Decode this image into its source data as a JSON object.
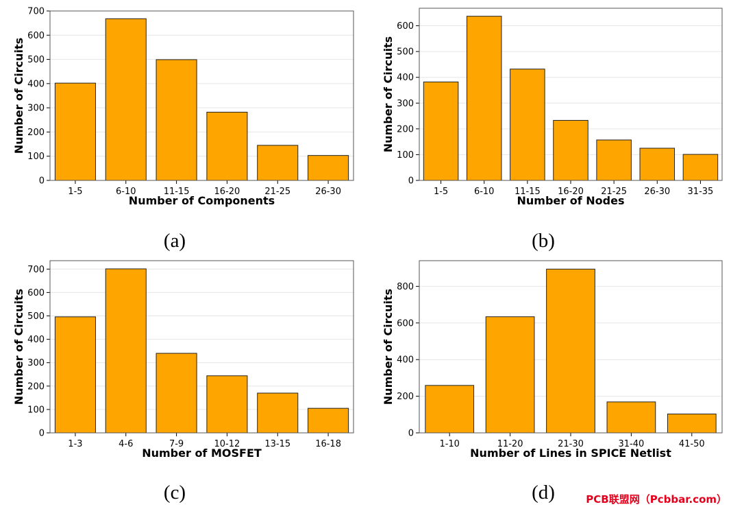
{
  "figure": {
    "bar_color": "#FFA500",
    "edge_color": "#222222",
    "watermark": "PCB联盟网（Pcbbar.com）"
  },
  "chart_data": [
    {
      "type": "bar",
      "caption": "(a)",
      "categories": [
        "1-5",
        "6-10",
        "11-15",
        "16-20",
        "21-25",
        "26-30"
      ],
      "values": [
        402,
        668,
        499,
        282,
        145,
        103
      ],
      "xlabel": "Number of Components",
      "ylabel": "Number of Circuits",
      "ylim": [
        0,
        700
      ],
      "yticks": [
        0,
        100,
        200,
        300,
        400,
        500,
        600,
        700
      ],
      "grid": "horizontal"
    },
    {
      "type": "bar",
      "caption": "(b)",
      "categories": [
        "1-5",
        "6-10",
        "11-15",
        "16-20",
        "21-25",
        "26-30",
        "31-35"
      ],
      "values": [
        382,
        637,
        432,
        233,
        157,
        125,
        101
      ],
      "xlabel": "Number of Nodes",
      "ylabel": "Number of Circuits",
      "ylim": [
        0,
        668
      ],
      "yticks": [
        0,
        100,
        200,
        300,
        400,
        500,
        600
      ],
      "grid": "horizontal"
    },
    {
      "type": "bar",
      "caption": "(c)",
      "categories": [
        "1-3",
        "4-6",
        "7-9",
        "10-12",
        "13-15",
        "16-18"
      ],
      "values": [
        496,
        701,
        340,
        244,
        170,
        105
      ],
      "xlabel": "Number of MOSFET",
      "ylabel": "Number of Circuits",
      "ylim": [
        0,
        736
      ],
      "yticks": [
        0,
        100,
        200,
        300,
        400,
        500,
        600,
        700
      ],
      "grid": "horizontal"
    },
    {
      "type": "bar",
      "caption": "(d)",
      "categories": [
        "1-10",
        "11-20",
        "21-30",
        "31-40",
        "41-50"
      ],
      "values": [
        259,
        634,
        894,
        169,
        103
      ],
      "xlabel": "Number of Lines in SPICE Netlist",
      "ylabel": "Number of Circuits",
      "ylim": [
        0,
        940
      ],
      "yticks": [
        0,
        200,
        400,
        600,
        800
      ],
      "grid": "horizontal"
    }
  ]
}
